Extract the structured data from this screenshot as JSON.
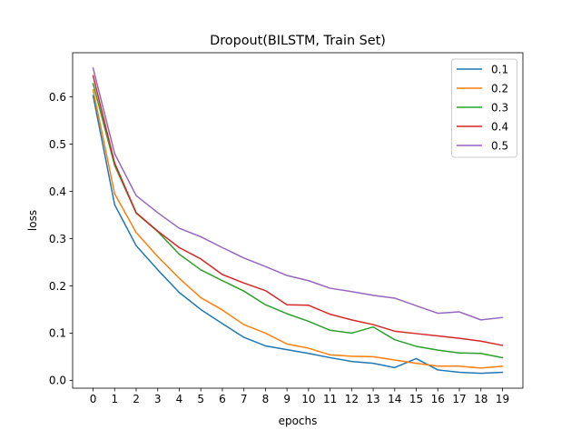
{
  "chart_data": {
    "type": "line",
    "title": "Dropout(BILSTM, Train Set)",
    "xlabel": "epochs",
    "ylabel": "loss",
    "x": [
      0,
      1,
      2,
      3,
      4,
      5,
      6,
      7,
      8,
      9,
      10,
      11,
      12,
      13,
      14,
      15,
      16,
      17,
      18,
      19
    ],
    "xlim": [
      -0.95,
      19.95
    ],
    "ylim": [
      -0.0166,
      0.6936
    ],
    "yticks": [
      0.0,
      0.1,
      0.2,
      0.3,
      0.4,
      0.5,
      0.6
    ],
    "ytick_labels": [
      "0.0",
      "0.1",
      "0.2",
      "0.3",
      "0.4",
      "0.5",
      "0.6"
    ],
    "legend_position": "top-right",
    "grid": false,
    "series": [
      {
        "name": "0.1",
        "color": "#1f77b4",
        "values": [
          0.603,
          0.372,
          0.285,
          0.234,
          0.186,
          0.15,
          0.12,
          0.091,
          0.073,
          0.065,
          0.057,
          0.048,
          0.04,
          0.036,
          0.027,
          0.046,
          0.022,
          0.017,
          0.015,
          0.017
        ]
      },
      {
        "name": "0.2",
        "color": "#ff7f0e",
        "values": [
          0.615,
          0.395,
          0.313,
          0.262,
          0.216,
          0.175,
          0.149,
          0.118,
          0.1,
          0.077,
          0.068,
          0.054,
          0.051,
          0.05,
          0.043,
          0.036,
          0.03,
          0.03,
          0.026,
          0.03
        ]
      },
      {
        "name": "0.3",
        "color": "#2ca02c",
        "values": [
          0.628,
          0.455,
          0.354,
          0.315,
          0.267,
          0.234,
          0.211,
          0.189,
          0.16,
          0.141,
          0.125,
          0.106,
          0.1,
          0.113,
          0.086,
          0.072,
          0.064,
          0.058,
          0.057,
          0.048
        ]
      },
      {
        "name": "0.4",
        "color": "#d62728",
        "values": [
          0.645,
          0.46,
          0.355,
          0.316,
          0.281,
          0.257,
          0.224,
          0.206,
          0.19,
          0.16,
          0.159,
          0.14,
          0.128,
          0.118,
          0.104,
          0.099,
          0.094,
          0.089,
          0.083,
          0.074
        ]
      },
      {
        "name": "0.5",
        "color": "#9467bd",
        "values": [
          0.661,
          0.48,
          0.391,
          0.355,
          0.322,
          0.304,
          0.281,
          0.259,
          0.241,
          0.222,
          0.211,
          0.195,
          0.188,
          0.18,
          0.174,
          0.158,
          0.142,
          0.145,
          0.128,
          0.133
        ]
      }
    ]
  }
}
